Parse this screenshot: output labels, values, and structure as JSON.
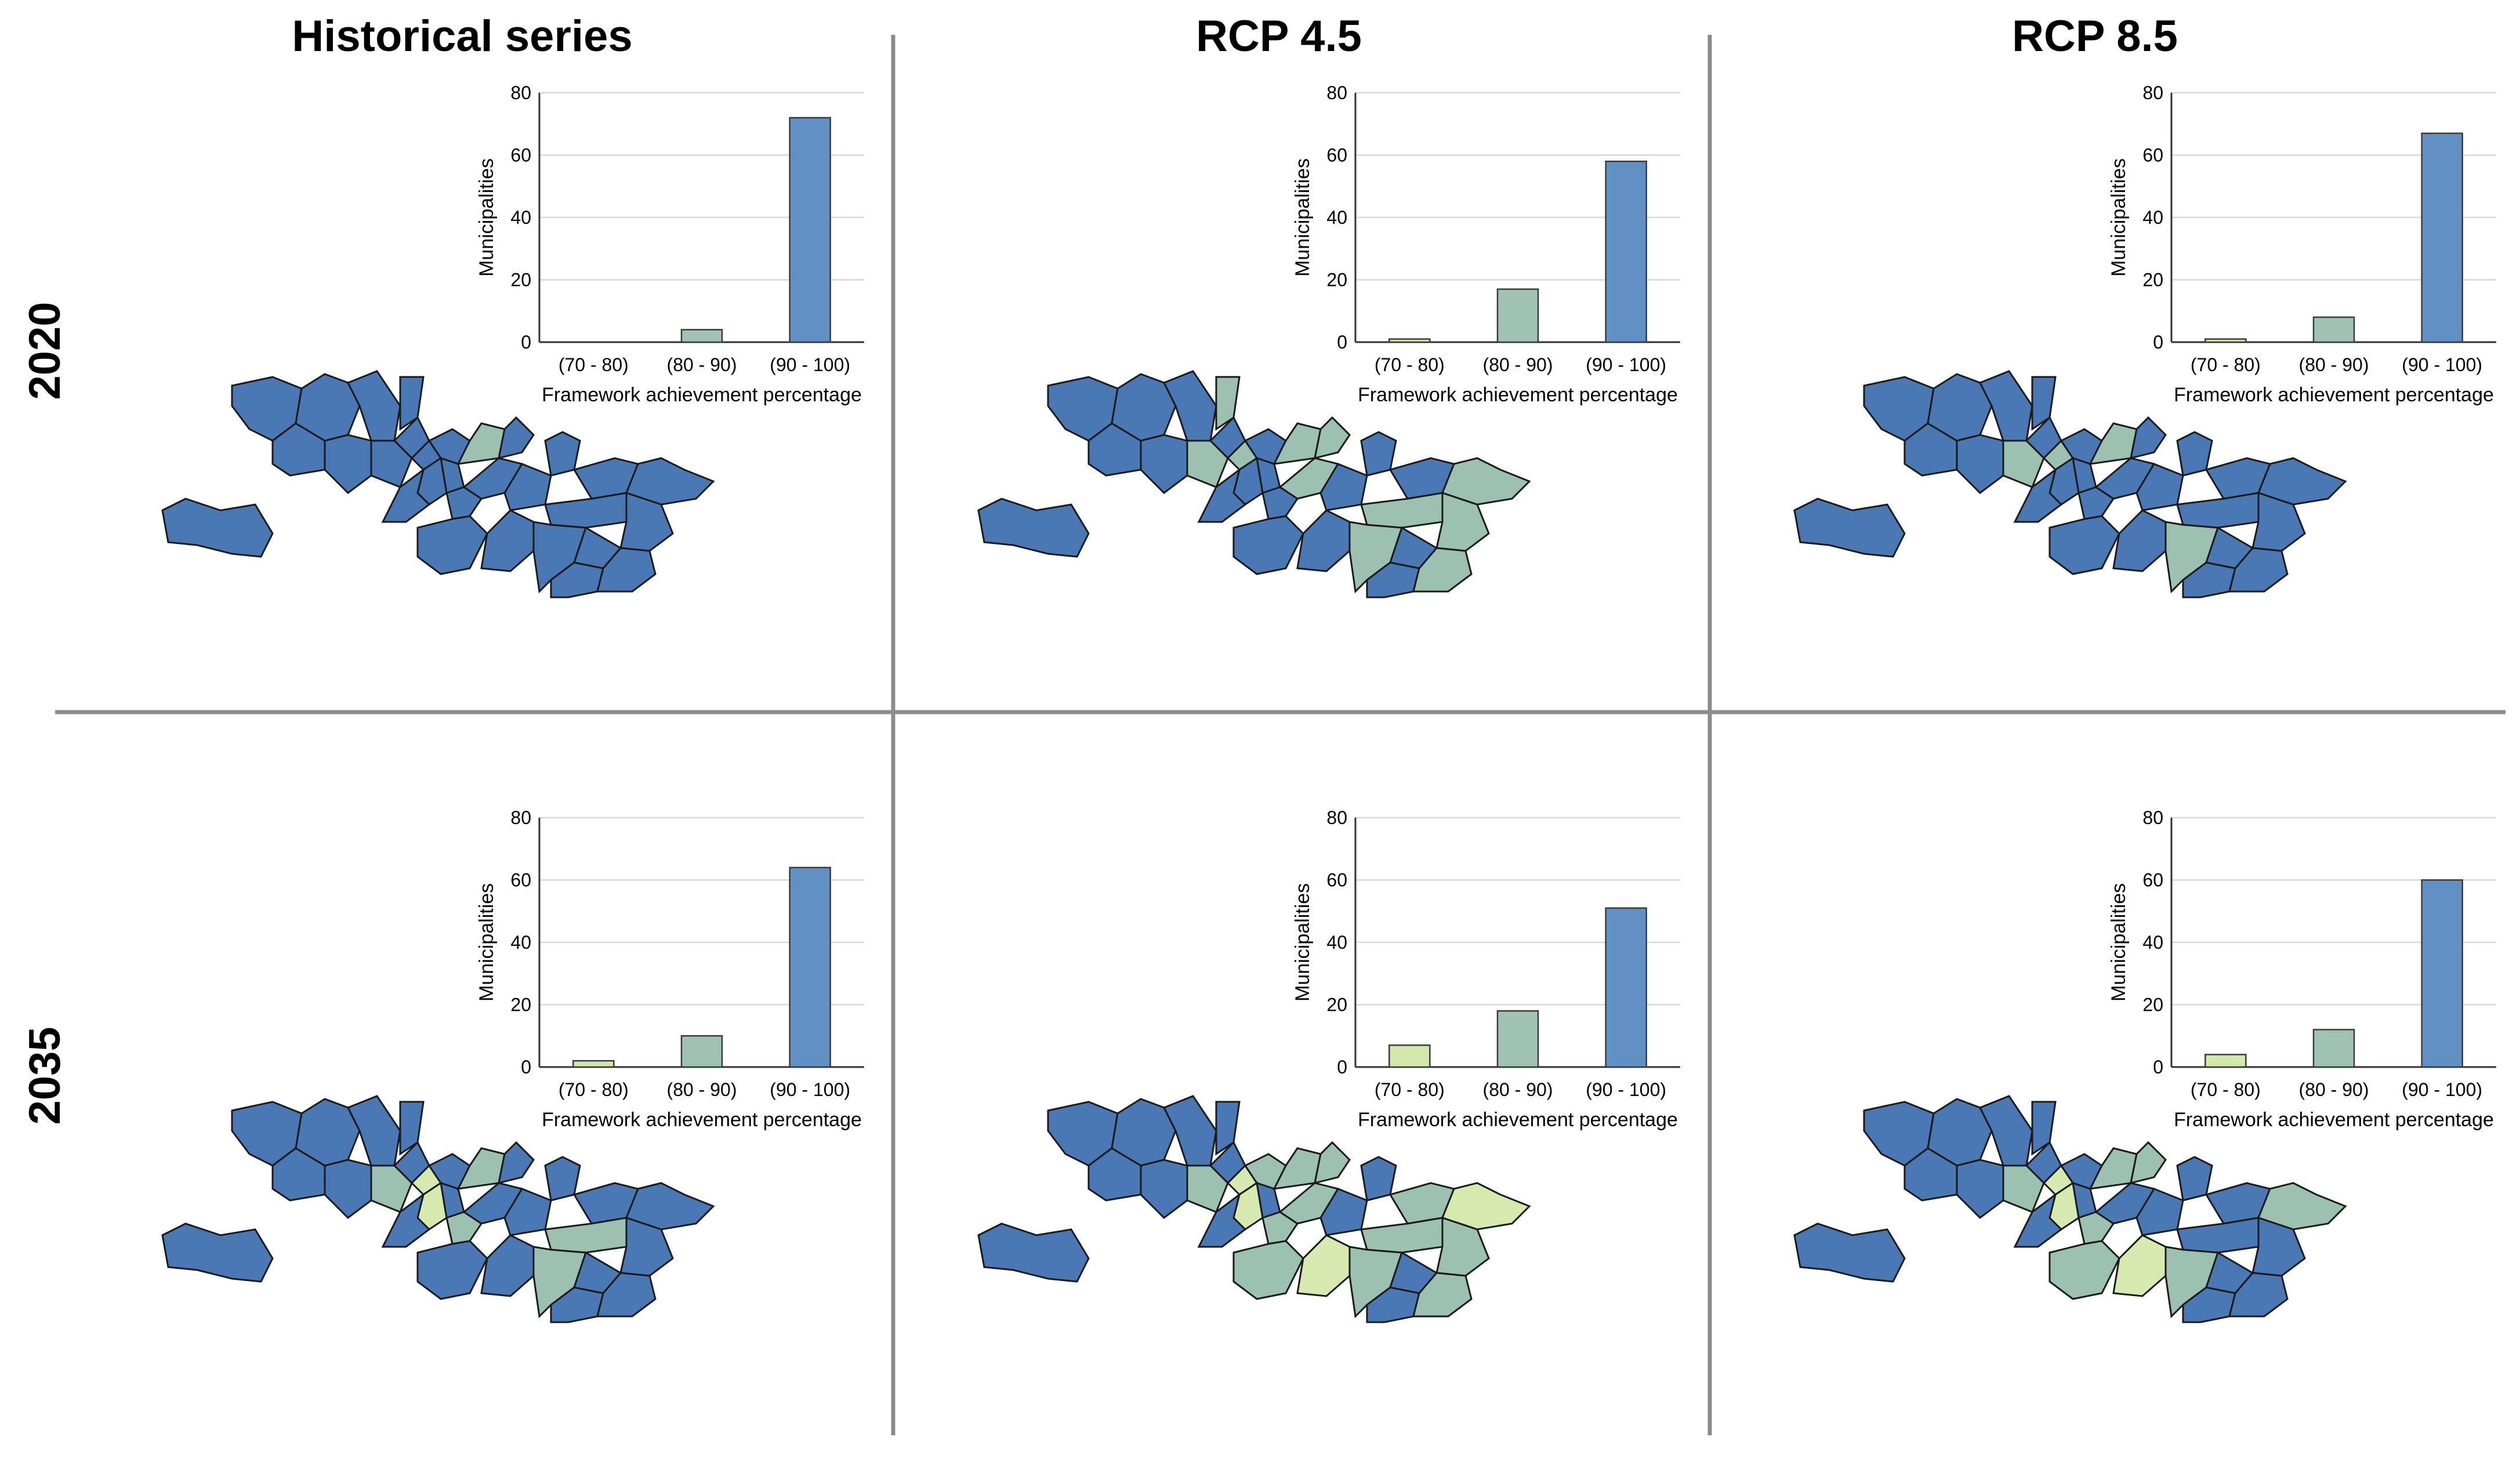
{
  "column_titles": [
    "Historical series",
    "RCP 4.5",
    "RCP 8.5"
  ],
  "row_titles": [
    "2020",
    "2035"
  ],
  "colors": {
    "class_70_80": "#d6eab0",
    "class_80_90": "#9dc1b0",
    "class_90_100": "#4a78b5",
    "bar_70_80": "#d3e8ad",
    "bar_80_90": "#a0c3b3",
    "bar_90_100": "#6190c4"
  },
  "chart_data": [
    {
      "type": "bar",
      "panel": "2020 - Historical series",
      "title": "",
      "categories": [
        "(70 - 80)",
        "(80 - 90)",
        "(90 - 100)"
      ],
      "values": [
        0,
        4,
        72
      ],
      "xlabel": "Framework achievement percentage",
      "ylabel": "Municipalities",
      "ylim": [
        0,
        80
      ],
      "yticks": [
        0,
        20,
        40,
        60,
        80
      ],
      "grid": true
    },
    {
      "type": "bar",
      "panel": "2020 - RCP 4.5",
      "title": "",
      "categories": [
        "(70 - 80)",
        "(80 - 90)",
        "(90 - 100)"
      ],
      "values": [
        1,
        17,
        58
      ],
      "xlabel": "Framework achievement percentage",
      "ylabel": "Municipalities",
      "ylim": [
        0,
        80
      ],
      "yticks": [
        0,
        20,
        40,
        60,
        80
      ],
      "grid": true
    },
    {
      "type": "bar",
      "panel": "2020 - RCP 8.5",
      "title": "",
      "categories": [
        "(70 - 80)",
        "(80 - 90)",
        "(90 - 100)"
      ],
      "values": [
        1,
        8,
        67
      ],
      "xlabel": "Framework achievement percentage",
      "ylabel": "Municipalities",
      "ylim": [
        0,
        80
      ],
      "yticks": [
        0,
        20,
        40,
        60,
        80
      ],
      "grid": true
    },
    {
      "type": "bar",
      "panel": "2035 - Historical series",
      "title": "",
      "categories": [
        "(70 - 80)",
        "(80 - 90)",
        "(90 - 100)"
      ],
      "values": [
        2,
        10,
        64
      ],
      "xlabel": "Framework achievement percentage",
      "ylabel": "Municipalities",
      "ylim": [
        0,
        80
      ],
      "yticks": [
        0,
        20,
        40,
        60,
        80
      ],
      "grid": true
    },
    {
      "type": "bar",
      "panel": "2035 - RCP 4.5",
      "title": "",
      "categories": [
        "(70 - 80)",
        "(80 - 90)",
        "(90 - 100)"
      ],
      "values": [
        7,
        18,
        51
      ],
      "xlabel": "Framework achievement percentage",
      "ylabel": "Municipalities",
      "ylim": [
        0,
        80
      ],
      "yticks": [
        0,
        20,
        40,
        60,
        80
      ],
      "grid": true
    },
    {
      "type": "bar",
      "panel": "2035 - RCP 8.5",
      "title": "",
      "categories": [
        "(70 - 80)",
        "(80 - 90)",
        "(90 - 100)"
      ],
      "values": [
        4,
        12,
        60
      ],
      "xlabel": "Framework achievement percentage",
      "ylabel": "Municipalities",
      "ylim": [
        0,
        80
      ],
      "yticks": [
        0,
        20,
        40,
        60,
        80
      ],
      "grid": true
    }
  ],
  "maps": [
    {
      "panel": "2020 - Historical series",
      "region_classes": [
        "90-100",
        "90-100",
        "90-100",
        "90-100",
        "90-100",
        "90-100",
        "90-100",
        "90-100",
        "90-100",
        "90-100",
        "90-100",
        "90-100",
        "80-90",
        "90-100",
        "90-100",
        "90-100",
        "90-100",
        "90-100",
        "90-100",
        "90-100",
        "90-100",
        "90-100",
        "90-100",
        "90-100",
        "90-100",
        "90-100",
        "90-100",
        "90-100",
        "90-100",
        "90-100"
      ]
    },
    {
      "panel": "2020 - RCP 4.5",
      "region_classes": [
        "90-100",
        "90-100",
        "90-100",
        "90-100",
        "90-100",
        "80-90",
        "90-100",
        "90-100",
        "80-90",
        "80-90",
        "90-100",
        "90-100",
        "80-90",
        "80-90",
        "90-100",
        "90-100",
        "90-100",
        "90-100",
        "80-90",
        "90-100",
        "90-100",
        "80-90",
        "80-90",
        "80-90",
        "90-100",
        "90-100",
        "80-90",
        "90-100",
        "80-90",
        "90-100"
      ]
    },
    {
      "panel": "2020 - RCP 8.5",
      "region_classes": [
        "90-100",
        "90-100",
        "90-100",
        "90-100",
        "90-100",
        "90-100",
        "90-100",
        "90-100",
        "80-90",
        "80-90",
        "90-100",
        "90-100",
        "80-90",
        "90-100",
        "90-100",
        "90-100",
        "90-100",
        "90-100",
        "90-100",
        "90-100",
        "90-100",
        "90-100",
        "90-100",
        "90-100",
        "90-100",
        "90-100",
        "80-90",
        "90-100",
        "90-100",
        "90-100"
      ]
    },
    {
      "panel": "2035 - Historical series",
      "region_classes": [
        "90-100",
        "90-100",
        "90-100",
        "90-100",
        "90-100",
        "90-100",
        "90-100",
        "90-100",
        "80-90",
        "70-80",
        "90-100",
        "90-100",
        "80-90",
        "90-100",
        "90-100",
        "70-80",
        "90-100",
        "80-90",
        "90-100",
        "90-100",
        "90-100",
        "90-100",
        "80-90",
        "90-100",
        "90-100",
        "90-100",
        "80-90",
        "90-100",
        "90-100",
        "90-100"
      ]
    },
    {
      "panel": "2035 - RCP 4.5",
      "region_classes": [
        "90-100",
        "90-100",
        "90-100",
        "90-100",
        "90-100",
        "90-100",
        "90-100",
        "90-100",
        "80-90",
        "70-80",
        "80-90",
        "90-100",
        "80-90",
        "80-90",
        "90-100",
        "70-80",
        "90-100",
        "80-90",
        "80-90",
        "90-100",
        "80-90",
        "70-80",
        "80-90",
        "80-90",
        "80-90",
        "70-80",
        "80-90",
        "90-100",
        "80-90",
        "90-100"
      ]
    },
    {
      "panel": "2035 - RCP 8.5",
      "region_classes": [
        "90-100",
        "90-100",
        "90-100",
        "90-100",
        "90-100",
        "90-100",
        "90-100",
        "90-100",
        "80-90",
        "70-80",
        "90-100",
        "90-100",
        "80-90",
        "80-90",
        "90-100",
        "70-80",
        "90-100",
        "80-90",
        "90-100",
        "90-100",
        "90-100",
        "80-90",
        "90-100",
        "90-100",
        "80-90",
        "70-80",
        "80-90",
        "90-100",
        "90-100",
        "90-100"
      ]
    }
  ]
}
